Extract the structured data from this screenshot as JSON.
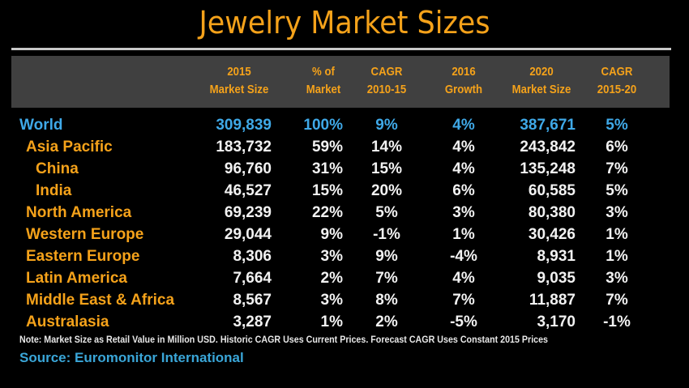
{
  "title": "Jewelry Market Sizes",
  "chart_data": {
    "type": "table",
    "title": "Jewelry Market Sizes",
    "columns": [
      {
        "line1": "2015",
        "line2": "Market Size"
      },
      {
        "line1": "% of",
        "line2": "Market"
      },
      {
        "line1": "CAGR",
        "line2": "2010-15"
      },
      {
        "line1": "2016",
        "line2": "Growth"
      },
      {
        "line1": "2020",
        "line2": "Market Size"
      },
      {
        "line1": "CAGR",
        "line2": "2015-20"
      }
    ],
    "rows": [
      {
        "label": "World",
        "level": 0,
        "values": [
          "309,839",
          "100%",
          "9%",
          "4%",
          "387,671",
          "5%"
        ]
      },
      {
        "label": "Asia Pacific",
        "level": 1,
        "values": [
          "183,732",
          "59%",
          "14%",
          "4%",
          "243,842",
          "6%"
        ]
      },
      {
        "label": "China",
        "level": 2,
        "values": [
          "96,760",
          "31%",
          "15%",
          "4%",
          "135,248",
          "7%"
        ]
      },
      {
        "label": "India",
        "level": 2,
        "values": [
          "46,527",
          "15%",
          "20%",
          "6%",
          "60,585",
          "5%"
        ]
      },
      {
        "label": "North America",
        "level": 1,
        "values": [
          "69,239",
          "22%",
          "5%",
          "3%",
          "80,380",
          "3%"
        ]
      },
      {
        "label": "Western Europe",
        "level": 1,
        "values": [
          "29,044",
          "9%",
          "-1%",
          "1%",
          "30,426",
          "1%"
        ]
      },
      {
        "label": "Eastern Europe",
        "level": 1,
        "values": [
          "8,306",
          "3%",
          "9%",
          "-4%",
          "8,931",
          "1%"
        ]
      },
      {
        "label": "Latin America",
        "level": 1,
        "values": [
          "7,664",
          "2%",
          "7%",
          "4%",
          "9,035",
          "3%"
        ]
      },
      {
        "label": "Middle East & Africa",
        "level": 1,
        "values": [
          "8,567",
          "3%",
          "8%",
          "7%",
          "11,887",
          "7%"
        ]
      },
      {
        "label": "Australasia",
        "level": 1,
        "values": [
          "3,287",
          "1%",
          "2%",
          "-5%",
          "3,170",
          "-1%"
        ]
      }
    ]
  },
  "note": "Note: Market Size as Retail Value in Million USD. Historic CAGR Uses Current Prices. Forecast CAGR Uses Constant 2015 Prices",
  "source": "Source: Euromonitor International",
  "colors": {
    "title": "#f5a21a",
    "label": "#f5a21a",
    "world": "#3fa9e8",
    "header_bg": "#404040",
    "value": "#f2f2f2",
    "source": "#3aa6d8"
  }
}
